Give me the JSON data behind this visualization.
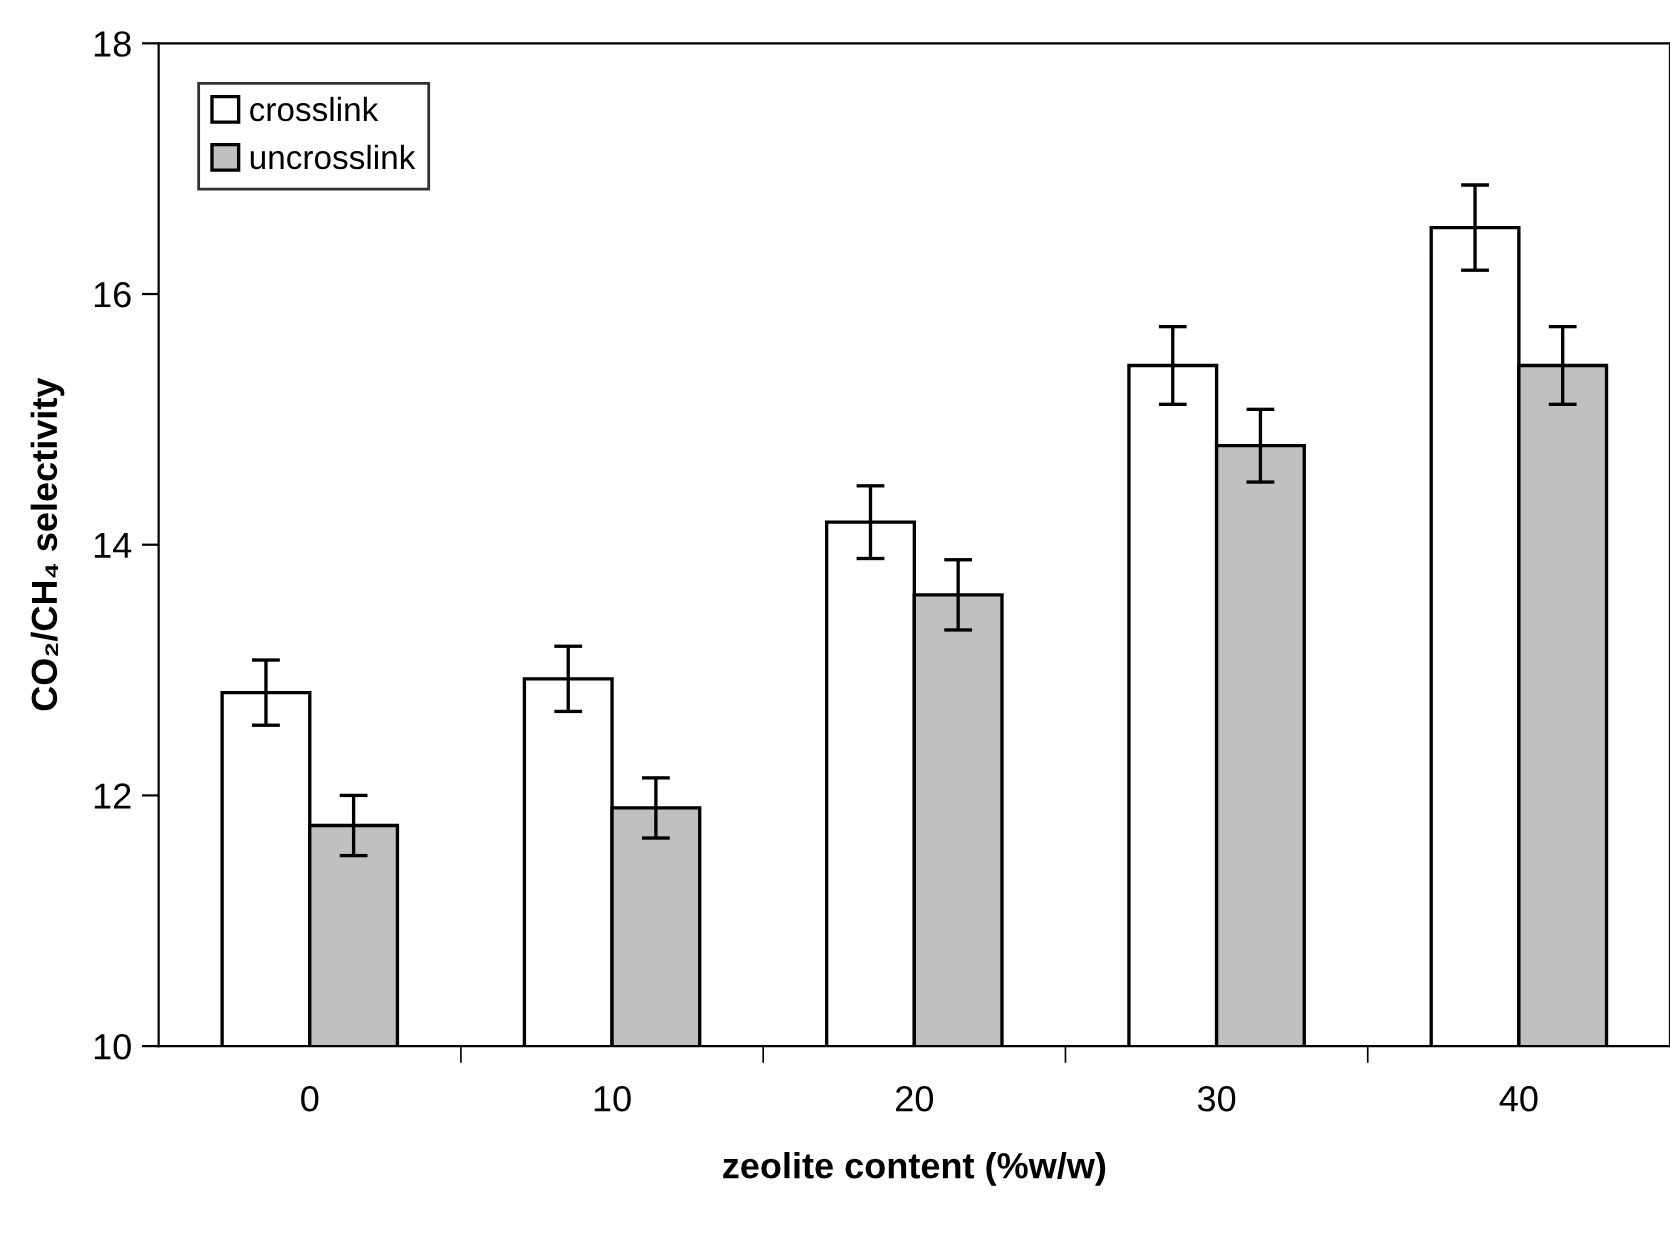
{
  "chart_data": {
    "type": "bar",
    "xlabel": "zeolite content (%w/w)",
    "ylabel": "CO₂/CH₄ selectivity",
    "categories": [
      "0",
      "10",
      "20",
      "30",
      "40"
    ],
    "series": [
      {
        "name": "crosslink",
        "color": "#ffffff",
        "values": [
          12.82,
          12.93,
          14.18,
          15.43,
          16.53
        ],
        "errors": [
          0.26,
          0.26,
          0.29,
          0.31,
          0.34
        ]
      },
      {
        "name": "uncrosslink",
        "color": "#c0c0c0",
        "values": [
          11.76,
          11.9,
          13.6,
          14.79,
          15.43
        ],
        "errors": [
          0.24,
          0.24,
          0.28,
          0.29,
          0.31
        ]
      }
    ],
    "ylim": [
      10,
      18
    ],
    "yticks": [
      10,
      12,
      14,
      16,
      18
    ],
    "grid": false,
    "legend": "top left"
  }
}
